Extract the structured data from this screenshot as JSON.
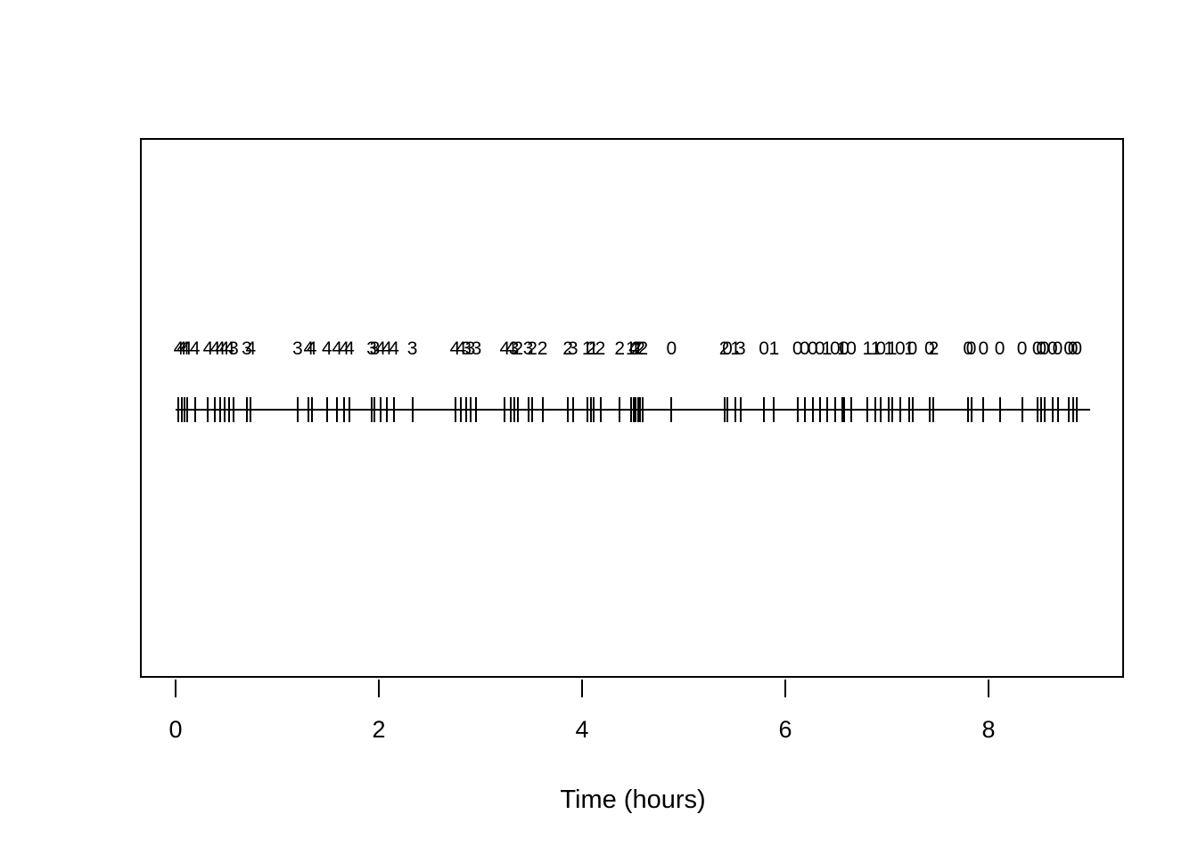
{
  "figure": {
    "background_color": "#ffffff",
    "ink_color": "#000000"
  },
  "chart_data": {
    "type": "rug",
    "note": "event-time rug plot: vertical dashes on a horizontal timeline, each event annotated above with a count label",
    "title": "",
    "xlabel": "Time (hours)",
    "ylabel": "",
    "xlim": [
      0,
      9
    ],
    "x_ticks": [
      "0",
      "2",
      "4",
      "6",
      "8"
    ],
    "x_tick_values": [
      0,
      2,
      4,
      6,
      8
    ],
    "grid": false,
    "legend": null,
    "events": [
      {
        "t": 0.03,
        "label": "4"
      },
      {
        "t": 0.06,
        "label": "4"
      },
      {
        "t": 0.09,
        "label": "4"
      },
      {
        "t": 0.11,
        "label": "4"
      },
      {
        "t": 0.19,
        "label": "4"
      },
      {
        "t": 0.32,
        "label": "4"
      },
      {
        "t": 0.39,
        "label": "4"
      },
      {
        "t": 0.44,
        "label": "4"
      },
      {
        "t": 0.48,
        "label": "4"
      },
      {
        "t": 0.53,
        "label": "4"
      },
      {
        "t": 0.57,
        "label": "3"
      },
      {
        "t": 0.7,
        "label": "3"
      },
      {
        "t": 0.74,
        "label": "4"
      },
      {
        "t": 1.2,
        "label": "3"
      },
      {
        "t": 1.31,
        "label": "4"
      },
      {
        "t": 1.34,
        "label": "4"
      },
      {
        "t": 1.49,
        "label": "4"
      },
      {
        "t": 1.59,
        "label": "4"
      },
      {
        "t": 1.66,
        "label": "4"
      },
      {
        "t": 1.71,
        "label": "4"
      },
      {
        "t": 1.93,
        "label": "3"
      },
      {
        "t": 1.96,
        "label": "3"
      },
      {
        "t": 2.02,
        "label": "4"
      },
      {
        "t": 2.08,
        "label": "4"
      },
      {
        "t": 2.15,
        "label": "4"
      },
      {
        "t": 2.33,
        "label": "3"
      },
      {
        "t": 2.75,
        "label": "4"
      },
      {
        "t": 2.81,
        "label": "4"
      },
      {
        "t": 2.86,
        "label": "3"
      },
      {
        "t": 2.9,
        "label": "3"
      },
      {
        "t": 2.96,
        "label": "3"
      },
      {
        "t": 3.24,
        "label": "4"
      },
      {
        "t": 3.3,
        "label": "4"
      },
      {
        "t": 3.33,
        "label": "3"
      },
      {
        "t": 3.37,
        "label": "2"
      },
      {
        "t": 3.47,
        "label": "3"
      },
      {
        "t": 3.51,
        "label": "2"
      },
      {
        "t": 3.61,
        "label": "2"
      },
      {
        "t": 3.86,
        "label": "2"
      },
      {
        "t": 3.91,
        "label": "3"
      },
      {
        "t": 4.05,
        "label": "1"
      },
      {
        "t": 4.09,
        "label": "2"
      },
      {
        "t": 4.11,
        "label": "1"
      },
      {
        "t": 4.18,
        "label": "2"
      },
      {
        "t": 4.37,
        "label": "2"
      },
      {
        "t": 4.48,
        "label": "1"
      },
      {
        "t": 4.51,
        "label": "4"
      },
      {
        "t": 4.53,
        "label": "2"
      },
      {
        "t": 4.55,
        "label": "1"
      },
      {
        "t": 4.57,
        "label": "2"
      },
      {
        "t": 4.6,
        "label": "2"
      },
      {
        "t": 4.88,
        "label": "0"
      },
      {
        "t": 5.4,
        "label": "2"
      },
      {
        "t": 5.43,
        "label": "0"
      },
      {
        "t": 5.51,
        "label": "1"
      },
      {
        "t": 5.56,
        "label": "3"
      },
      {
        "t": 5.79,
        "label": "0"
      },
      {
        "t": 5.89,
        "label": "1"
      },
      {
        "t": 6.12,
        "label": "0"
      },
      {
        "t": 6.19,
        "label": "0"
      },
      {
        "t": 6.27,
        "label": "0"
      },
      {
        "t": 6.34,
        "label": "0"
      },
      {
        "t": 6.41,
        "label": "1"
      },
      {
        "t": 6.49,
        "label": "0"
      },
      {
        "t": 6.56,
        "label": "1"
      },
      {
        "t": 6.58,
        "label": "0"
      },
      {
        "t": 6.65,
        "label": "0"
      },
      {
        "t": 6.81,
        "label": "1"
      },
      {
        "t": 6.89,
        "label": "1"
      },
      {
        "t": 6.94,
        "label": "0"
      },
      {
        "t": 7.02,
        "label": "1"
      },
      {
        "t": 7.05,
        "label": "1"
      },
      {
        "t": 7.13,
        "label": "0"
      },
      {
        "t": 7.22,
        "label": "1"
      },
      {
        "t": 7.25,
        "label": "0"
      },
      {
        "t": 7.42,
        "label": "0"
      },
      {
        "t": 7.46,
        "label": "2"
      },
      {
        "t": 7.8,
        "label": "0"
      },
      {
        "t": 7.83,
        "label": "0"
      },
      {
        "t": 7.95,
        "label": "0"
      },
      {
        "t": 8.11,
        "label": "0"
      },
      {
        "t": 8.33,
        "label": "0"
      },
      {
        "t": 8.48,
        "label": "0"
      },
      {
        "t": 8.52,
        "label": "0"
      },
      {
        "t": 8.55,
        "label": "0"
      },
      {
        "t": 8.63,
        "label": "0"
      },
      {
        "t": 8.68,
        "label": "0"
      },
      {
        "t": 8.79,
        "label": "0"
      },
      {
        "t": 8.83,
        "label": "0"
      },
      {
        "t": 8.87,
        "label": "0"
      }
    ],
    "timeline_end": 9.0
  }
}
